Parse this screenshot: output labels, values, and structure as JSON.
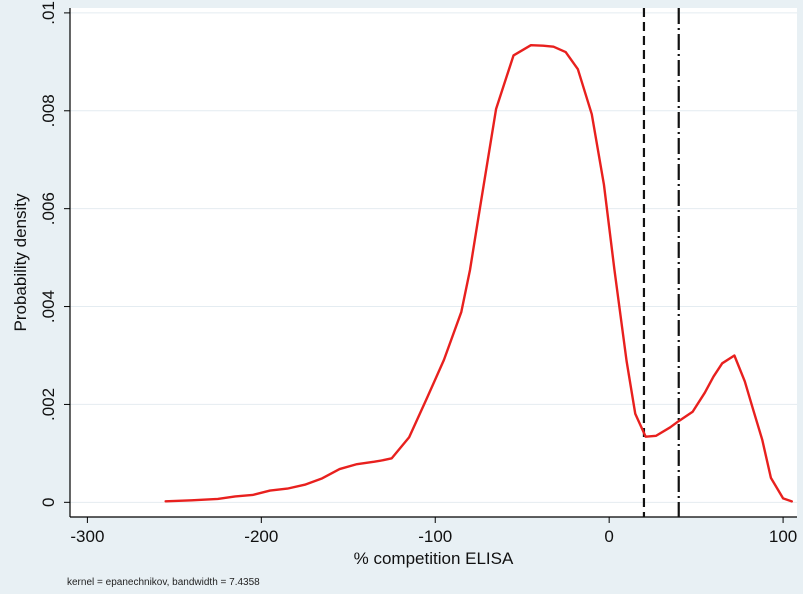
{
  "chart_data": {
    "type": "line",
    "xlabel": "% competition ELISA",
    "ylabel": "Probability density",
    "note": "kernel = epanechnikov, bandwidth = 7.4358",
    "xlim": [
      -310,
      108
    ],
    "ylim": [
      -0.0003,
      0.0101
    ],
    "x_ticks": [
      -300,
      -200,
      -100,
      0,
      100
    ],
    "x_tick_labels": [
      "-300",
      "-200",
      "-100",
      "0",
      "100"
    ],
    "y_ticks": [
      0,
      0.002,
      0.004,
      0.006,
      0.008,
      0.01
    ],
    "y_tick_labels": [
      "0",
      ".002",
      ".004",
      ".006",
      ".008",
      ".01"
    ],
    "grid": "horizontal",
    "series": [
      {
        "color": "#e8201e",
        "x": [
          -255,
          -240,
          -225,
          -215,
          -205,
          -195,
          -185,
          -175,
          -165,
          -155,
          -145,
          -135,
          -130,
          -125,
          -115,
          -105,
          -95,
          -85,
          -80,
          -75,
          -65,
          -55,
          -45,
          -38,
          -32,
          -25,
          -18,
          -10,
          -3,
          3,
          10,
          15,
          21,
          27,
          35,
          40,
          48,
          55,
          60,
          65,
          72,
          78,
          83,
          88,
          93,
          100,
          105
        ],
        "y": [
          2e-05,
          4e-05,
          7e-05,
          0.00012,
          0.00015,
          0.00024,
          0.00028,
          0.00036,
          0.00049,
          0.00068,
          0.00078,
          0.00083,
          0.00086,
          0.0009,
          0.00133,
          0.00211,
          0.00291,
          0.00389,
          0.00475,
          0.00586,
          0.00804,
          0.00913,
          0.00934,
          0.00933,
          0.00931,
          0.0092,
          0.00885,
          0.00793,
          0.00649,
          0.00476,
          0.00289,
          0.00181,
          0.00134,
          0.00136,
          0.00153,
          0.00166,
          0.00185,
          0.00224,
          0.00257,
          0.00284,
          0.003,
          0.00247,
          0.00187,
          0.00128,
          0.0005,
          8e-05,
          2e-05
        ]
      }
    ],
    "vlines": [
      {
        "x": 20,
        "style": "dashed",
        "color": "#111111"
      },
      {
        "x": 40,
        "style": "long-dash-dot",
        "color": "#111111"
      }
    ],
    "colors": {
      "outer_background": "#e8f0f4",
      "plot_background": "#ffffff",
      "grid": "#e4ecf1",
      "line": "#e8201e"
    }
  }
}
